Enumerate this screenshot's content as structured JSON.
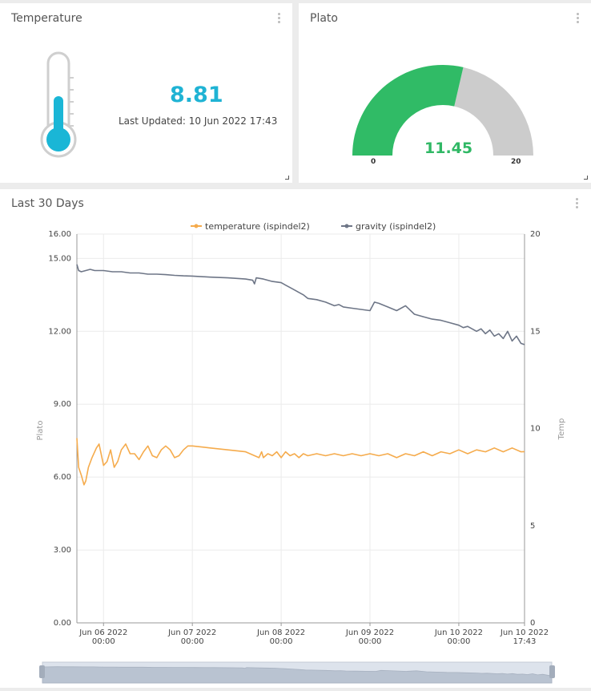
{
  "temperature_card": {
    "title": "Temperature",
    "value": "8.81",
    "last_updated": "Last Updated: 10 Jun 2022 17:43",
    "icon": "thermometer-icon"
  },
  "plato_card": {
    "title": "Plato",
    "value": "11.45",
    "min_label": "0",
    "max_label": "20",
    "gauge_fraction": 0.5725,
    "fill_color": "#30bb66",
    "track_color": "#cccccc"
  },
  "history_card": {
    "title": "Last 30 Days"
  },
  "chart_data": {
    "type": "line",
    "title": "",
    "legend_position": "top-center",
    "grid": true,
    "xlabel": "",
    "ylabel_left": "Plato",
    "ylabel_right": "Temp",
    "ylim_left": [
      0,
      16
    ],
    "ylim_right": [
      0,
      20
    ],
    "left_ticks": [
      "0.00",
      "3.00",
      "6.00",
      "9.00",
      "12.00",
      "15.00",
      "16.00"
    ],
    "right_ticks": [
      "0",
      "5",
      "10",
      "15",
      "20"
    ],
    "x_ticks": [
      {
        "line1": "Jun 06 2022",
        "line2": "00:00"
      },
      {
        "line1": "Jun 07 2022",
        "line2": "00:00"
      },
      {
        "line1": "Jun 08 2022",
        "line2": "00:00"
      },
      {
        "line1": "Jun 09 2022",
        "line2": "00:00"
      },
      {
        "line1": "Jun 10 2022",
        "line2": "00:00"
      },
      {
        "line1": "Jun 10 2022",
        "line2": "17:43"
      }
    ],
    "series": [
      {
        "name": "temperature  (ispindel2)",
        "axis": "right",
        "color": "#f5ab4c",
        "x": [
          5.7,
          5.72,
          5.75,
          5.78,
          5.8,
          5.83,
          5.87,
          5.92,
          5.95,
          6.0,
          6.04,
          6.08,
          6.12,
          6.16,
          6.2,
          6.25,
          6.3,
          6.35,
          6.4,
          6.45,
          6.5,
          6.55,
          6.6,
          6.65,
          6.7,
          6.75,
          6.8,
          6.85,
          6.9,
          6.95,
          7.0,
          7.2,
          7.4,
          7.6,
          7.75,
          7.78,
          7.8,
          7.85,
          7.9,
          7.95,
          8.0,
          8.05,
          8.1,
          8.15,
          8.2,
          8.25,
          8.3,
          8.4,
          8.5,
          8.6,
          8.7,
          8.8,
          8.9,
          9.0,
          9.1,
          9.2,
          9.3,
          9.4,
          9.5,
          9.6,
          9.7,
          9.8,
          9.9,
          10.0,
          10.1,
          10.2,
          10.3,
          10.4,
          10.5,
          10.6,
          10.7,
          10.74
        ],
        "values": [
          9.5,
          8.0,
          7.6,
          7.1,
          7.3,
          8.0,
          8.5,
          9.0,
          9.2,
          8.1,
          8.3,
          8.9,
          8.0,
          8.3,
          8.9,
          9.2,
          8.7,
          8.7,
          8.4,
          8.8,
          9.1,
          8.6,
          8.5,
          8.9,
          9.1,
          8.9,
          8.5,
          8.6,
          8.9,
          9.1,
          9.1,
          9.0,
          8.9,
          8.8,
          8.5,
          8.8,
          8.5,
          8.7,
          8.6,
          8.8,
          8.5,
          8.8,
          8.6,
          8.7,
          8.5,
          8.7,
          8.6,
          8.7,
          8.6,
          8.7,
          8.6,
          8.7,
          8.6,
          8.7,
          8.6,
          8.7,
          8.5,
          8.7,
          8.6,
          8.8,
          8.6,
          8.8,
          8.7,
          8.9,
          8.7,
          8.9,
          8.8,
          9.0,
          8.8,
          9.0,
          8.8,
          8.81
        ]
      },
      {
        "name": "gravity  (ispindel2)",
        "axis": "left",
        "color": "#6e7687",
        "x": [
          5.7,
          5.72,
          5.75,
          5.8,
          5.85,
          5.9,
          6.0,
          6.1,
          6.2,
          6.3,
          6.4,
          6.5,
          6.6,
          6.7,
          6.8,
          6.9,
          7.0,
          7.2,
          7.4,
          7.6,
          7.68,
          7.7,
          7.72,
          7.8,
          7.9,
          8.0,
          8.05,
          8.1,
          8.15,
          8.2,
          8.25,
          8.3,
          8.4,
          8.5,
          8.6,
          8.65,
          8.7,
          8.8,
          8.9,
          9.0,
          9.05,
          9.1,
          9.2,
          9.3,
          9.4,
          9.5,
          9.6,
          9.7,
          9.8,
          9.9,
          10.0,
          10.05,
          10.1,
          10.2,
          10.25,
          10.3,
          10.35,
          10.4,
          10.45,
          10.5,
          10.55,
          10.6,
          10.65,
          10.7,
          10.74
        ],
        "values": [
          14.75,
          14.5,
          14.45,
          14.5,
          14.55,
          14.5,
          14.5,
          14.45,
          14.45,
          14.4,
          14.4,
          14.35,
          14.35,
          14.33,
          14.3,
          14.28,
          14.27,
          14.23,
          14.2,
          14.15,
          14.1,
          13.95,
          14.2,
          14.15,
          14.05,
          14.0,
          13.9,
          13.8,
          13.7,
          13.6,
          13.5,
          13.35,
          13.3,
          13.2,
          13.05,
          13.1,
          13.0,
          12.95,
          12.9,
          12.85,
          13.2,
          13.15,
          13.0,
          12.85,
          13.05,
          12.7,
          12.6,
          12.5,
          12.45,
          12.35,
          12.25,
          12.15,
          12.2,
          12.0,
          12.1,
          11.9,
          12.05,
          11.8,
          11.9,
          11.7,
          12.0,
          11.6,
          11.8,
          11.5,
          11.45
        ]
      }
    ]
  }
}
